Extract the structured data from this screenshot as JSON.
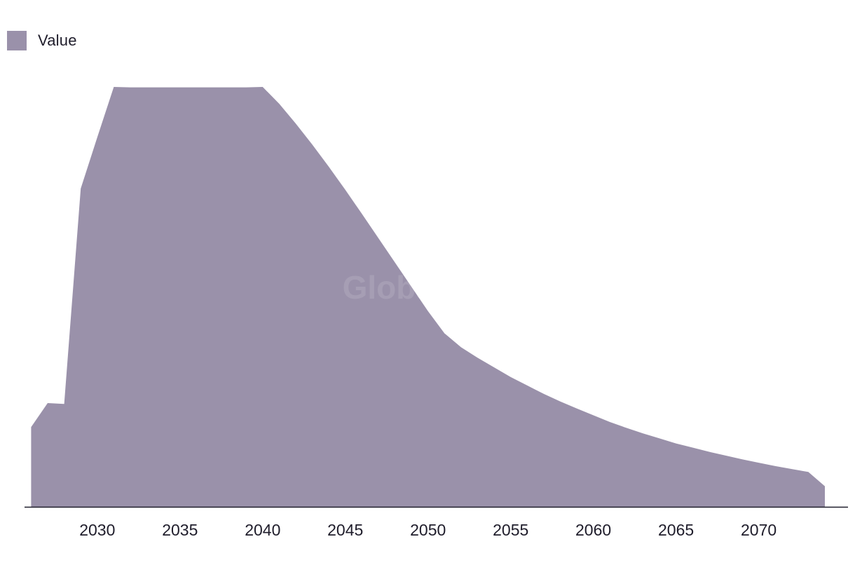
{
  "legend": {
    "label": "Value"
  },
  "watermark": "GlobalData",
  "colors": {
    "area": "#9a91aa",
    "axis": "#1f1d2b"
  },
  "chart_data": {
    "type": "area",
    "title": "",
    "xlabel": "",
    "ylabel": "",
    "legend_position": "top-left",
    "grid": false,
    "xlim": [
      2025.6,
      2075.4
    ],
    "ylim": [
      0,
      100
    ],
    "x_ticks": [
      2030,
      2035,
      2040,
      2045,
      2050,
      2055,
      2060,
      2065,
      2070
    ],
    "x": [
      2026,
      2027,
      2028,
      2029,
      2030,
      2031,
      2032,
      2033,
      2034,
      2035,
      2036,
      2037,
      2038,
      2039,
      2040,
      2041,
      2042,
      2043,
      2044,
      2045,
      2046,
      2047,
      2048,
      2049,
      2050,
      2051,
      2052,
      2053,
      2054,
      2055,
      2056,
      2057,
      2058,
      2059,
      2060,
      2061,
      2062,
      2063,
      2064,
      2065,
      2066,
      2067,
      2068,
      2069,
      2070,
      2071,
      2072,
      2073,
      2074
    ],
    "series": [
      {
        "name": "Value",
        "values": [
          19,
          24.7,
          24.5,
          75.8,
          88,
          100,
          99.9,
          99.9,
          99.9,
          99.9,
          99.9,
          99.9,
          99.9,
          99.9,
          100,
          96,
          91.3,
          86.3,
          81,
          75.5,
          69.8,
          64,
          58.2,
          52.4,
          46.6,
          41.3,
          38,
          35.5,
          33.2,
          30.9,
          28.9,
          26.9,
          25.1,
          23.4,
          21.8,
          20.2,
          18.8,
          17.5,
          16.3,
          15.1,
          14.1,
          13.1,
          12.2,
          11.3,
          10.5,
          9.7,
          9,
          8.3,
          4.9
        ]
      }
    ]
  }
}
